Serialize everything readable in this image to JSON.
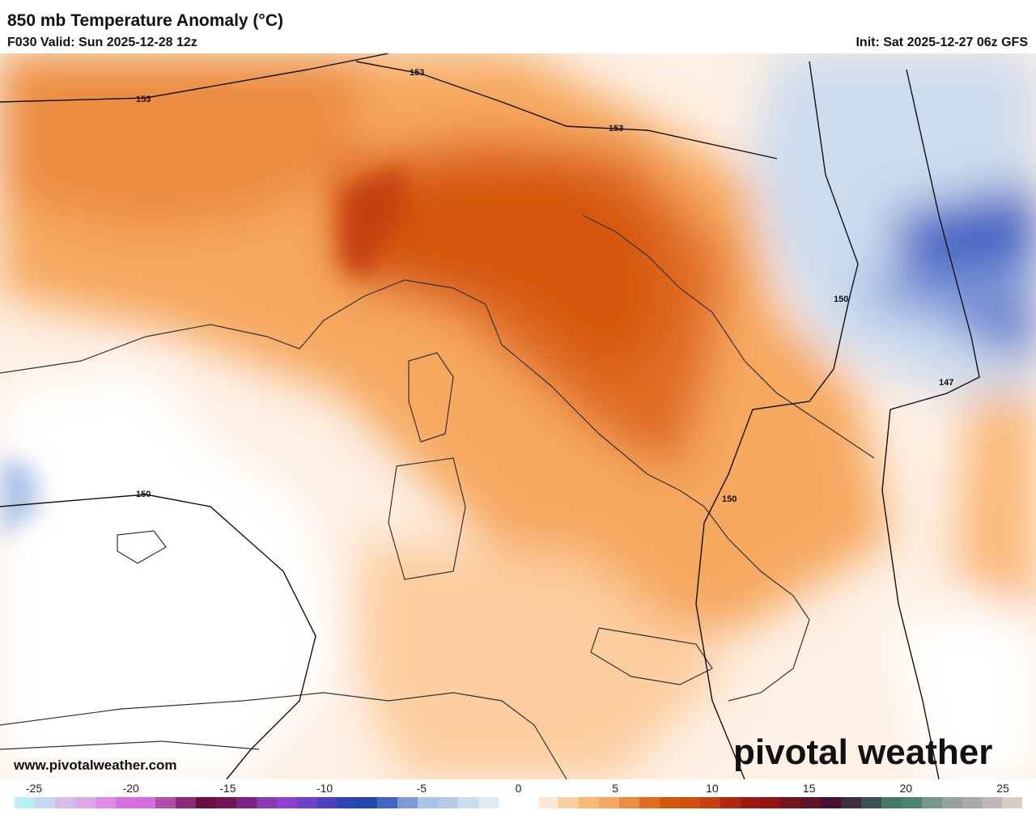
{
  "header": {
    "title": "850 mb Temperature Anomaly (°C)",
    "valid": "F030 Valid: Sun 2025-12-28 12z",
    "init": "Init: Sat 2025-12-27 06z GFS"
  },
  "map": {
    "contour_labels": [
      "153",
      "153",
      "153",
      "150",
      "150",
      "150",
      "147"
    ]
  },
  "footer": {
    "url": "www.pivotalweather.com",
    "logo": "pivotal weather"
  },
  "colorbar": {
    "ticks": [
      "-25",
      "-20",
      "-15",
      "-10",
      "-5",
      "0",
      "5",
      "10",
      "15",
      "20",
      "25"
    ],
    "min": -25,
    "max": 25,
    "colors": [
      "#bdeef4",
      "#c9d6f0",
      "#d2bdec",
      "#dca8ea",
      "#e08ae8",
      "#dc6ee4",
      "#d86ae0",
      "#b050a8",
      "#8c2a78",
      "#6a1048",
      "#741452",
      "#7a2484",
      "#8a38b8",
      "#8e40d0",
      "#7040c8",
      "#4c40c0",
      "#2c44b8",
      "#2448b0",
      "#4464c4",
      "#7e98d8",
      "#aac2e6",
      "#b4cae8",
      "#ccdcee",
      "#e0eaf4",
      "#ffffff",
      "#ffffff",
      "#fde6d2",
      "#fccd9e",
      "#fab878",
      "#f6a85e",
      "#ec8c40",
      "#e06c20",
      "#d45608",
      "#d04e0a",
      "#c4400e",
      "#b02810",
      "#a01610",
      "#941414",
      "#781420",
      "#5c1428",
      "#461432",
      "#3e2c40",
      "#40505a",
      "#467868",
      "#4c8470",
      "#74988a",
      "#94a49c",
      "#aaaaaa",
      "#c2b6b6",
      "#d8ccc8"
    ]
  }
}
